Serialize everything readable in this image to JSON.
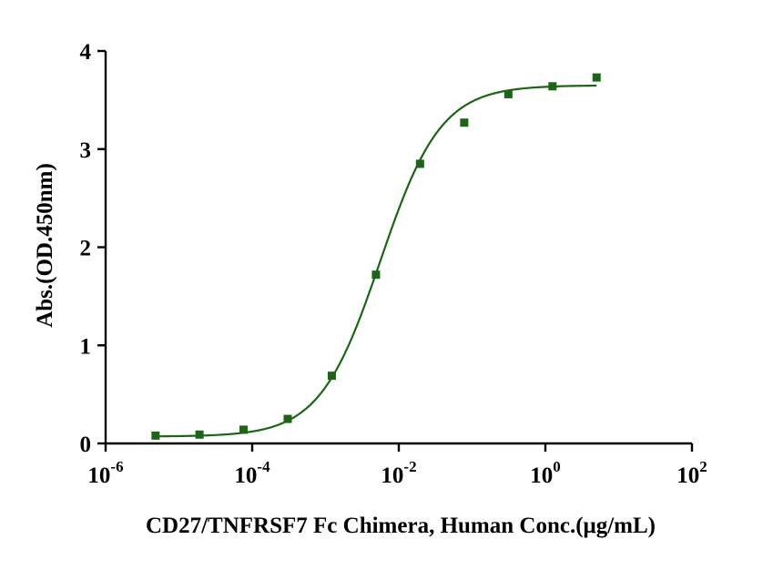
{
  "chart_data": {
    "type": "scatter",
    "xlabel": "CD27/TNFRSF7 Fc Chimera, Human Conc.(μg/mL)",
    "ylabel": "Abs.(OD.450nm)",
    "x_scale": "log",
    "xlim": [
      1e-06,
      100
    ],
    "ylim": [
      0,
      4
    ],
    "x_ticks": [
      {
        "base": "10",
        "exp": "-6",
        "value": 1e-06
      },
      {
        "base": "10",
        "exp": "-4",
        "value": 0.0001
      },
      {
        "base": "10",
        "exp": "-2",
        "value": 0.01
      },
      {
        "base": "10",
        "exp": "0",
        "value": 1
      },
      {
        "base": "10",
        "exp": "2",
        "value": 100
      }
    ],
    "y_ticks": [
      {
        "label": "0",
        "value": 0
      },
      {
        "label": "1",
        "value": 1
      },
      {
        "label": "2",
        "value": 2
      },
      {
        "label": "3",
        "value": 3
      },
      {
        "label": "4",
        "value": 4
      }
    ],
    "series": [
      {
        "color": "#1b6614",
        "marker": "square",
        "x": [
          4.8e-06,
          1.91e-05,
          7.63e-05,
          0.000305,
          0.00122,
          0.00488,
          0.0195,
          0.0781,
          0.3125,
          1.25,
          5
        ],
        "y": [
          0.08,
          0.09,
          0.14,
          0.25,
          0.69,
          1.72,
          2.85,
          3.27,
          3.56,
          3.64,
          3.73
        ]
      }
    ],
    "fit_curve": {
      "color": "#1b6614",
      "bottom": 0.07,
      "top": 3.65,
      "ec50": 0.0056,
      "hill_slope": 1.05
    },
    "grid": false,
    "legend": "none"
  }
}
